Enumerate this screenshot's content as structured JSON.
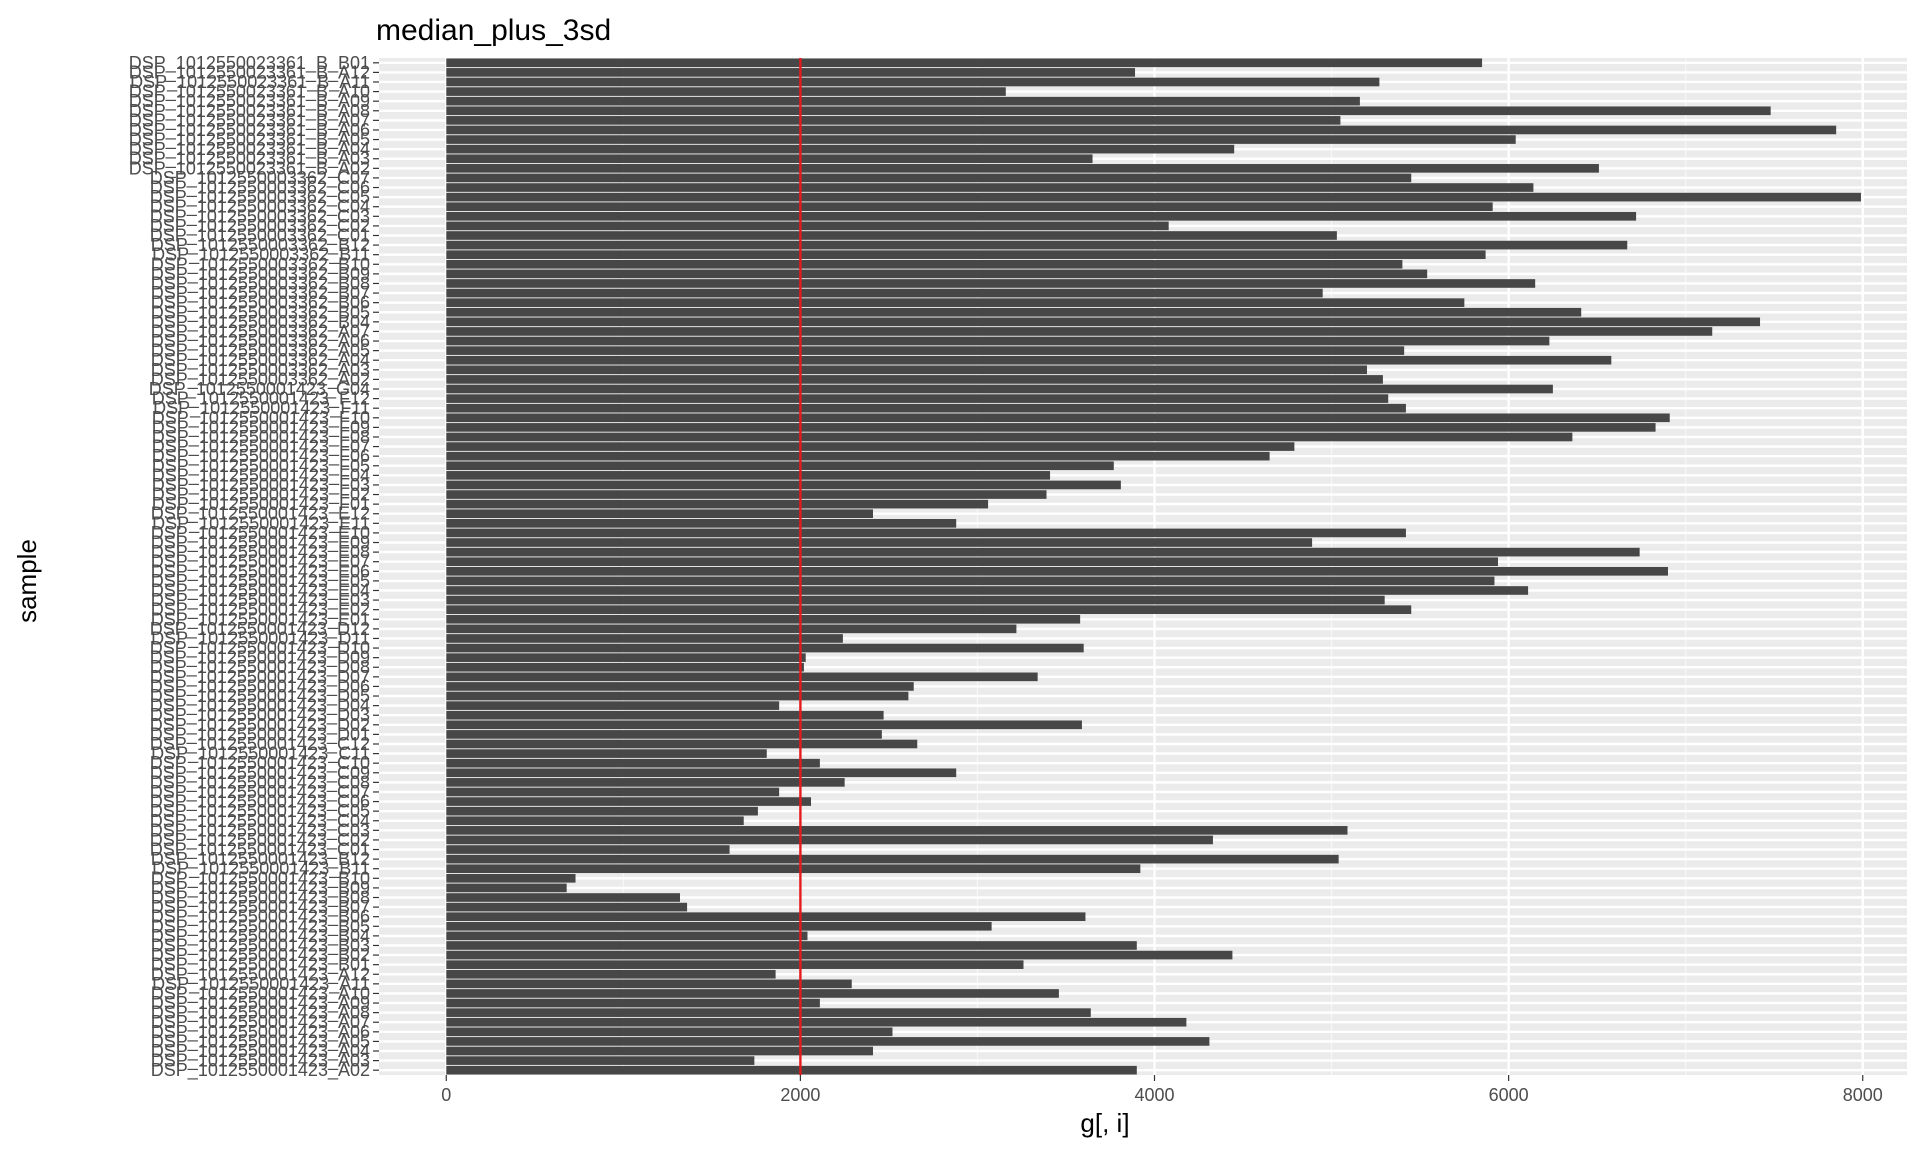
{
  "chart_data": {
    "type": "bar",
    "orientation": "horizontal",
    "title": "median_plus_3sd",
    "xlabel": "g[, i]",
    "ylabel": "sample",
    "xlim": [
      -380,
      8250
    ],
    "xticks": [
      0,
      2000,
      4000,
      6000,
      8000
    ],
    "xtick_labels": [
      "0",
      "2000",
      "4000",
      "6000",
      "8000"
    ],
    "grid": true,
    "bar_color": "#474747",
    "panel_color": "#ebebeb",
    "reference_line": {
      "x": 2000,
      "color": "#e41a1c"
    },
    "categories": [
      "DSP_1012550023361_B_B01",
      "DSP_1012550023361_B_A12",
      "DSP_1012550023361_B_A11",
      "DSP_1012550023361_B_A10",
      "DSP_1012550023361_B_A09",
      "DSP_1012550023361_B_A08",
      "DSP_1012550023361_B_A07",
      "DSP_1012550023361_B_A06",
      "DSP_1012550023361_B_A05",
      "DSP_1012550023361_B_A04",
      "DSP_1012550023361_B_A03",
      "DSP_1012550023361_B_A02",
      "DSP_1012550003362_C07",
      "DSP_1012550003362_C06",
      "DSP_1012550003362_C05",
      "DSP_1012550003362_C04",
      "DSP_1012550003362_C03",
      "DSP_1012550003362_C02",
      "DSP_1012550003362_C01",
      "DSP_1012550003362_B12",
      "DSP_1012550003362_B11",
      "DSP_1012550003362_B10",
      "DSP_1012550003362_B09",
      "DSP_1012550003362_B08",
      "DSP_1012550003362_B07",
      "DSP_1012550003362_B06",
      "DSP_1012550003362_B05",
      "DSP_1012550003362_B04",
      "DSP_1012550003362_A07",
      "DSP_1012550003362_A06",
      "DSP_1012550003362_A05",
      "DSP_1012550003362_A04",
      "DSP_1012550003362_A03",
      "DSP_1012550003362_A02",
      "DSP_1012550001423_G04",
      "DSP_1012550001423_F12",
      "DSP_1012550001423_F11",
      "DSP_1012550001423_F10",
      "DSP_1012550001423_F09",
      "DSP_1012550001423_F08",
      "DSP_1012550001423_F07",
      "DSP_1012550001423_F06",
      "DSP_1012550001423_F05",
      "DSP_1012550001423_F04",
      "DSP_1012550001423_F03",
      "DSP_1012550001423_F02",
      "DSP_1012550001423_F01",
      "DSP_1012550001423_E12",
      "DSP_1012550001423_E11",
      "DSP_1012550001423_E10",
      "DSP_1012550001423_E09",
      "DSP_1012550001423_E08",
      "DSP_1012550001423_E07",
      "DSP_1012550001423_E06",
      "DSP_1012550001423_E05",
      "DSP_1012550001423_E04",
      "DSP_1012550001423_E03",
      "DSP_1012550001423_E02",
      "DSP_1012550001423_E01",
      "DSP_1012550001423_D12",
      "DSP_1012550001423_D11",
      "DSP_1012550001423_D10",
      "DSP_1012550001423_D09",
      "DSP_1012550001423_D08",
      "DSP_1012550001423_D07",
      "DSP_1012550001423_D06",
      "DSP_1012550001423_D05",
      "DSP_1012550001423_D04",
      "DSP_1012550001423_D03",
      "DSP_1012550001423_D02",
      "DSP_1012550001423_D01",
      "DSP_1012550001423_C12",
      "DSP_1012550001423_C11",
      "DSP_1012550001423_C10",
      "DSP_1012550001423_C09",
      "DSP_1012550001423_C08",
      "DSP_1012550001423_C07",
      "DSP_1012550001423_C06",
      "DSP_1012550001423_C05",
      "DSP_1012550001423_C04",
      "DSP_1012550001423_C03",
      "DSP_1012550001423_C02",
      "DSP_1012550001423_C01",
      "DSP_1012550001423_B12",
      "DSP_1012550001423_B11",
      "DSP_1012550001423_B10",
      "DSP_1012550001423_B09",
      "DSP_1012550001423_B08",
      "DSP_1012550001423_B07",
      "DSP_1012550001423_B06",
      "DSP_1012550001423_B05",
      "DSP_1012550001423_B04",
      "DSP_1012550001423_B03",
      "DSP_1012550001423_B02",
      "DSP_1012550001423_B01",
      "DSP_1012550001423_A12",
      "DSP_1012550001423_A11",
      "DSP_1012550001423_A10",
      "DSP_1012550001423_A09",
      "DSP_1012550001423_A08",
      "DSP_1012550001423_A07",
      "DSP_1012550001423_A06",
      "DSP_1012550001423_A05",
      "DSP_1012550001423_A04",
      "DSP_1012550001423_A03",
      "DSP_1012550001423_A02"
    ],
    "values": [
      5850,
      3890,
      5270,
      3160,
      5160,
      7480,
      5050,
      7850,
      6040,
      4450,
      3650,
      6510,
      5450,
      6140,
      7990,
      5910,
      6720,
      4080,
      5030,
      6670,
      5870,
      5400,
      5540,
      6150,
      4950,
      5750,
      6410,
      7420,
      7150,
      6230,
      5410,
      6580,
      5200,
      5290,
      6250,
      5320,
      5420,
      6910,
      6830,
      6360,
      4790,
      4650,
      3770,
      3410,
      3810,
      3390,
      3060,
      2410,
      2880,
      5420,
      4890,
      6740,
      5940,
      6900,
      5920,
      6110,
      5300,
      5450,
      3580,
      3220,
      2240,
      3600,
      2030,
      2020,
      3340,
      2640,
      2610,
      1880,
      2470,
      3590,
      2460,
      2660,
      1810,
      2110,
      2880,
      2250,
      1880,
      2060,
      1760,
      1680,
      5090,
      4330,
      1600,
      5040,
      3920,
      730,
      680,
      1320,
      1360,
      3610,
      3080,
      2040,
      3900,
      4440,
      3260,
      1860,
      2290,
      3460,
      2110,
      3640,
      4180,
      2520,
      4310,
      2410,
      1740,
      3900
    ]
  }
}
